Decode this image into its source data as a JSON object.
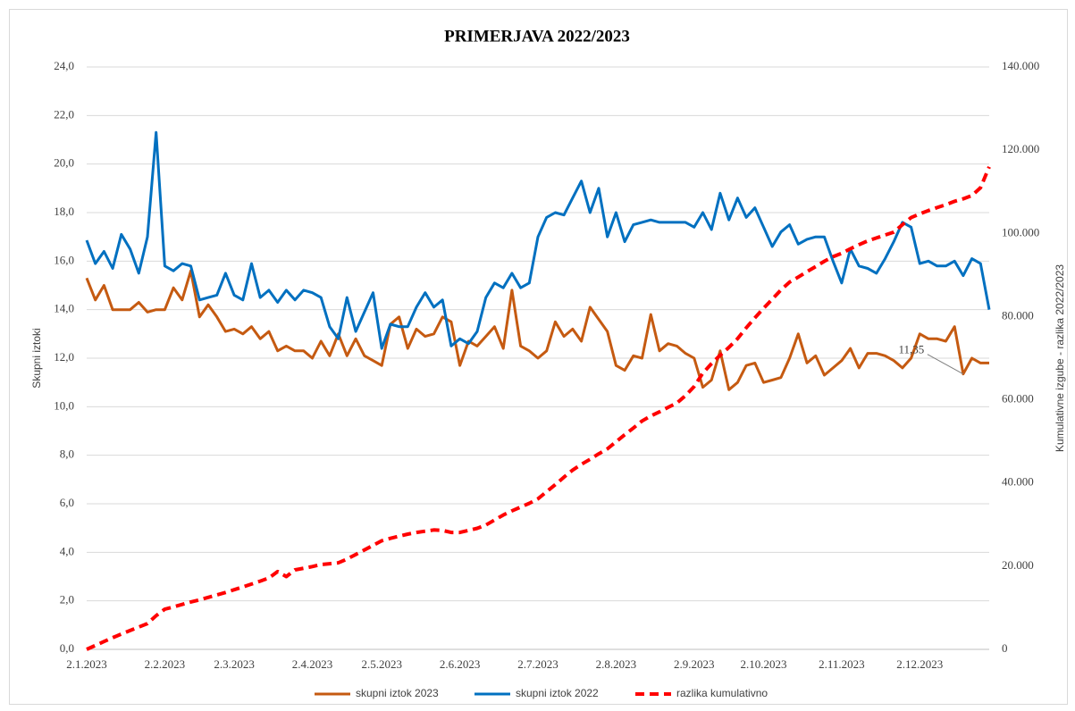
{
  "chart_data": {
    "type": "line",
    "title": "PRIMERJAVA 2022/2023",
    "ylabel": "Skupni iztoki",
    "y2label": "Kumulativne izgube - razlika 2022/2023",
    "categories": [
      "2.1.2023",
      null,
      null,
      null,
      null,
      null,
      null,
      null,
      null,
      "2.2.2023",
      null,
      null,
      null,
      null,
      null,
      null,
      null,
      "2.3.2023",
      null,
      null,
      null,
      null,
      null,
      null,
      null,
      null,
      "2.4.2023",
      null,
      null,
      null,
      null,
      null,
      null,
      null,
      "2.5.2023",
      null,
      null,
      null,
      null,
      null,
      null,
      null,
      null,
      "2.6.2023",
      null,
      null,
      null,
      null,
      null,
      null,
      null,
      null,
      "2.7.2023",
      null,
      null,
      null,
      null,
      null,
      null,
      null,
      null,
      "2.8.2023",
      null,
      null,
      null,
      null,
      null,
      null,
      null,
      null,
      "2.9.2023",
      null,
      null,
      null,
      null,
      null,
      null,
      null,
      "2.10.2023",
      null,
      null,
      null,
      null,
      null,
      null,
      null,
      null,
      "2.11.2023",
      null,
      null,
      null,
      null,
      null,
      null,
      null,
      null,
      "2.12.2023",
      null,
      null,
      null,
      null,
      null,
      null,
      null,
      null
    ],
    "series": [
      {
        "name": "skupni iztok 2023",
        "color": "#c55a11",
        "axis": "y",
        "values": [
          15.3,
          14.4,
          15.0,
          14.0,
          14.0,
          14.0,
          14.3,
          13.9,
          14.0,
          14.0,
          14.9,
          14.4,
          15.6,
          13.7,
          14.2,
          13.7,
          13.1,
          13.2,
          13.0,
          13.3,
          12.8,
          13.1,
          12.3,
          12.5,
          12.3,
          12.3,
          12.0,
          12.7,
          12.1,
          13.0,
          12.1,
          12.8,
          12.1,
          11.9,
          11.7,
          13.4,
          13.7,
          12.4,
          13.2,
          12.9,
          13.0,
          13.7,
          13.5,
          11.7,
          12.7,
          12.5,
          12.9,
          13.3,
          12.4,
          14.8,
          12.5,
          12.3,
          12.0,
          12.3,
          13.5,
          12.9,
          13.2,
          12.7,
          14.1,
          13.6,
          13.1,
          11.7,
          11.5,
          12.1,
          12.0,
          13.8,
          12.3,
          12.6,
          12.5,
          12.2,
          12.0,
          10.8,
          11.1,
          12.3,
          10.7,
          11.0,
          11.7,
          11.8,
          11.0,
          11.1,
          11.2,
          12.0,
          13.0,
          11.8,
          12.1,
          11.3,
          11.6,
          11.9,
          12.4,
          11.6,
          12.2,
          12.2,
          12.1,
          11.9,
          11.6,
          12.0,
          13.0,
          12.8,
          12.8,
          12.7,
          13.3,
          11.35,
          12.0,
          11.8,
          11.8
        ],
        "value_labels": [
          null,
          null,
          null,
          null,
          null,
          null,
          null,
          null,
          null,
          null,
          null,
          null,
          null,
          null,
          null,
          null,
          null,
          null,
          null,
          null,
          null,
          null,
          null,
          null,
          null,
          null,
          null,
          null,
          null,
          null,
          null,
          null,
          null,
          null,
          null,
          null,
          null,
          null,
          null,
          null,
          null,
          null,
          null,
          null,
          null,
          null,
          null,
          null,
          null,
          null,
          null,
          null,
          null,
          null,
          null,
          null,
          null,
          null,
          null,
          null,
          null,
          null,
          null,
          null,
          null,
          null,
          null,
          null,
          null,
          null,
          null,
          null,
          null,
          null,
          null,
          null,
          null,
          null,
          null,
          null,
          null,
          null,
          null,
          null,
          null,
          null,
          null,
          null,
          null,
          null,
          null,
          null,
          null,
          null,
          null,
          null,
          null,
          null,
          null,
          null,
          null,
          "11,35",
          null,
          null,
          null
        ]
      },
      {
        "name": "skupni iztok 2022",
        "color": "#0070c0",
        "axis": "y",
        "values": [
          16.86,
          15.9,
          16.4,
          15.7,
          17.1,
          16.5,
          15.5,
          17.0,
          21.3,
          15.8,
          15.6,
          15.9,
          15.8,
          14.4,
          14.5,
          14.6,
          15.5,
          14.6,
          14.4,
          15.9,
          14.5,
          14.8,
          14.3,
          14.8,
          14.4,
          14.8,
          14.7,
          14.5,
          13.3,
          12.8,
          14.5,
          13.1,
          13.9,
          14.7,
          12.4,
          13.4,
          13.3,
          13.3,
          14.1,
          14.7,
          14.1,
          14.4,
          12.5,
          12.8,
          12.6,
          13.1,
          14.5,
          15.1,
          14.9,
          15.5,
          14.9,
          15.1,
          17.0,
          17.8,
          18.0,
          17.9,
          18.6,
          19.3,
          18.0,
          19.0,
          17.0,
          18.0,
          16.8,
          17.5,
          17.6,
          17.7,
          17.6,
          17.6,
          17.6,
          17.6,
          17.4,
          18.0,
          17.3,
          18.8,
          17.7,
          18.6,
          17.8,
          18.2,
          17.4,
          16.6,
          17.2,
          17.5,
          16.7,
          16.9,
          17.0,
          17.0,
          16.0,
          15.1,
          16.5,
          15.8,
          15.7,
          15.5,
          16.1,
          16.8,
          17.6,
          17.4,
          15.9,
          16.0,
          15.8,
          15.8,
          16.0,
          15.4,
          16.1,
          15.9,
          14.0
        ]
      },
      {
        "name": "razlika kumulativno",
        "color": "#ff0000",
        "axis": "y2",
        "dashed": true,
        "values": [
          0,
          940,
          1880,
          2820,
          3700,
          4540,
          5370,
          6200,
          8100,
          9660,
          10200,
          10800,
          11400,
          11900,
          12500,
          13100,
          13670,
          14350,
          15000,
          15700,
          16400,
          17150,
          18700,
          17500,
          19100,
          19500,
          19900,
          20400,
          20600,
          20800,
          21700,
          22800,
          23900,
          25000,
          26100,
          26700,
          27200,
          27700,
          28100,
          28400,
          28700,
          28600,
          28100,
          28100,
          28600,
          29100,
          29900,
          31100,
          32300,
          33300,
          34200,
          35100,
          36200,
          37900,
          39600,
          41400,
          43100,
          44500,
          45700,
          47000,
          48200,
          49900,
          51600,
          53200,
          54900,
          56100,
          57100,
          58200,
          59200,
          61000,
          63200,
          66400,
          68700,
          70700,
          72600,
          74700,
          77300,
          79700,
          82000,
          84200,
          86400,
          88300,
          89500,
          90800,
          92000,
          93300,
          94400,
          95200,
          96300,
          97300,
          98200,
          98900,
          99600,
          100300,
          102100,
          103800,
          104700,
          105500,
          106200,
          106900,
          107700,
          108300,
          109100,
          111000,
          116000
        ]
      }
    ],
    "ylim": [
      0,
      24
    ],
    "yticks": [
      {
        "value": 0,
        "label": "0,0"
      },
      {
        "value": 2,
        "label": "2,0"
      },
      {
        "value": 4,
        "label": "4,0"
      },
      {
        "value": 6,
        "label": "6,0"
      },
      {
        "value": 8,
        "label": "8,0"
      },
      {
        "value": 10,
        "label": "10,0"
      },
      {
        "value": 12,
        "label": "12,0"
      },
      {
        "value": 14,
        "label": "14,0"
      },
      {
        "value": 16,
        "label": "16,0"
      },
      {
        "value": 18,
        "label": "18,0"
      },
      {
        "value": 20,
        "label": "20,0"
      },
      {
        "value": 22,
        "label": "22,0"
      },
      {
        "value": 24,
        "label": "24,0"
      }
    ],
    "y2lim": [
      0,
      140000
    ],
    "y2ticks": [
      0,
      {
        "value": 20000,
        "label": "20.000"
      },
      {
        "value": 40000,
        "label": "40.000"
      },
      {
        "value": 60000,
        "label": "60.000"
      },
      {
        "value": 80000,
        "label": "80.000"
      },
      {
        "value": 100000,
        "label": "100.000"
      },
      {
        "value": 120000,
        "label": "120.000"
      },
      {
        "value": 140000,
        "label": "140.000"
      }
    ],
    "grid": true,
    "legend": "bottom"
  }
}
